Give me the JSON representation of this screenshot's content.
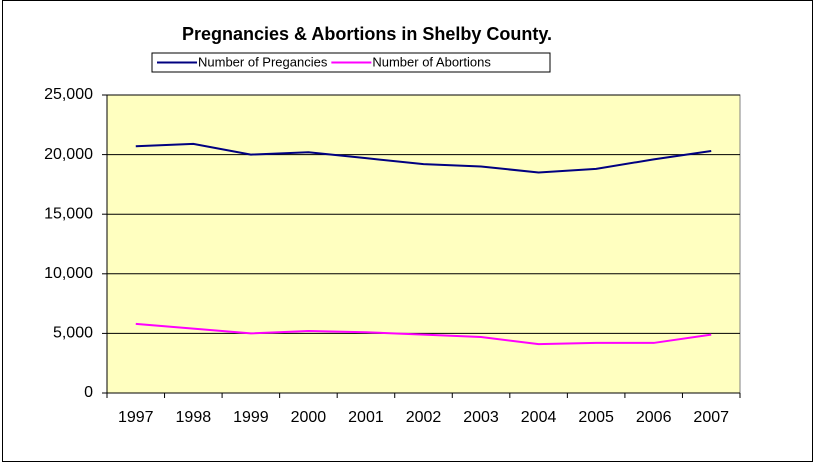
{
  "chart_data": {
    "type": "line",
    "title": "Pregnancies & Abortions in Shelby County.",
    "categories": [
      "1997",
      "1998",
      "1999",
      "2000",
      "2001",
      "2002",
      "2003",
      "2004",
      "2005",
      "2006",
      "2007"
    ],
    "series": [
      {
        "name": "Number of Pregancies",
        "color": "#000080",
        "values": [
          20700,
          20900,
          20000,
          20200,
          19700,
          19200,
          19000,
          18500,
          18800,
          19600,
          20300
        ]
      },
      {
        "name": "Number of Abortions",
        "color": "#ff00ff",
        "values": [
          5800,
          5400,
          5000,
          5200,
          5100,
          4900,
          4700,
          4100,
          4200,
          4200,
          4900
        ]
      }
    ],
    "ylim": [
      0,
      25000
    ],
    "yticks": [
      0,
      {
        "value": 5000,
        "label": "5,000"
      },
      {
        "value": 10000,
        "label": "10,000"
      },
      {
        "value": 15000,
        "label": "15,000"
      },
      {
        "value": 20000,
        "label": "20,000"
      },
      {
        "value": 25000,
        "label": "25,000"
      }
    ],
    "grid": true,
    "plot_background": "#ffffc0"
  }
}
